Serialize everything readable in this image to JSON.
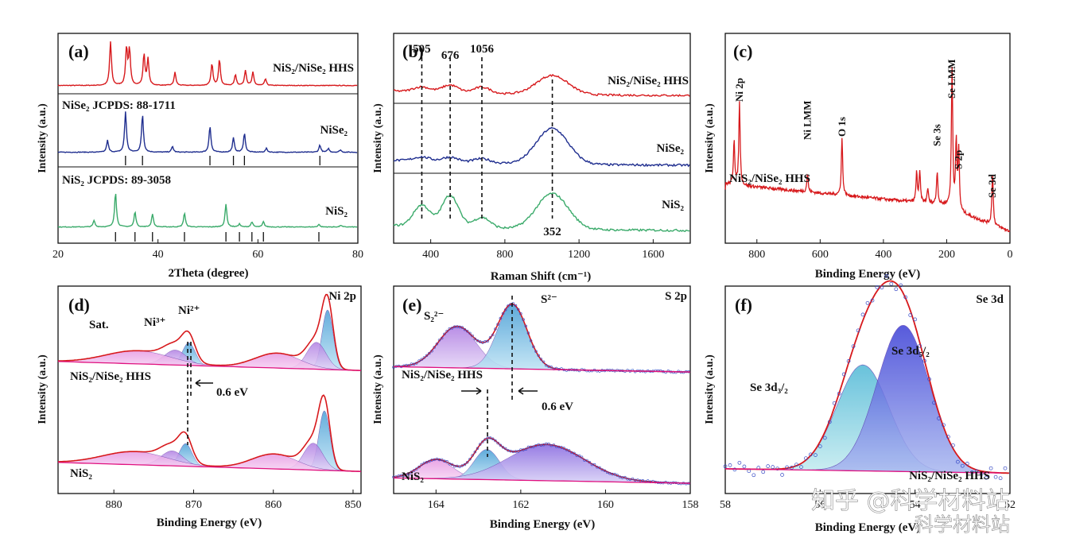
{
  "chart_data": [
    {
      "id": "a",
      "type": "line",
      "panel_label": "(a)",
      "xlabel": "2Theta (degree)",
      "ylabel": "Intensity (a.u.)",
      "xlim": [
        20,
        80
      ],
      "xticks": [
        "20",
        "40",
        "60",
        "80"
      ],
      "subpanels": [
        {
          "label": "NiS₂/NiSe₂ HHS",
          "color": "#d7191c",
          "peaks": [
            [
              30.5,
              1.0
            ],
            [
              33.7,
              0.85
            ],
            [
              34.3,
              0.8
            ],
            [
              37.2,
              0.7
            ],
            [
              38.0,
              0.6
            ],
            [
              43.4,
              0.3
            ],
            [
              50.8,
              0.5
            ],
            [
              52.3,
              0.6
            ],
            [
              55.5,
              0.25
            ],
            [
              57.5,
              0.35
            ],
            [
              59.0,
              0.3
            ],
            [
              61.5,
              0.15
            ]
          ]
        },
        {
          "label": "NiSe₂",
          "ref_label": "NiSe₂ JCPDS: 88-1711",
          "color": "#1f2e8f",
          "peaks": [
            [
              29.9,
              0.25
            ],
            [
              33.5,
              0.85
            ],
            [
              36.9,
              0.8
            ],
            [
              42.9,
              0.12
            ],
            [
              50.4,
              0.55
            ],
            [
              55.1,
              0.3
            ],
            [
              57.3,
              0.4
            ],
            [
              61.7,
              0.08
            ],
            [
              72.4,
              0.15
            ],
            [
              74.1,
              0.08
            ],
            [
              76.5,
              0.05
            ]
          ],
          "ref_lines": [
            33.5,
            36.9,
            50.4,
            55.1,
            57.3,
            72.4
          ]
        },
        {
          "label": "NiS₂",
          "ref_label": "NiS₂ JCPDS: 89-3058",
          "color": "#3aaa6a",
          "peaks": [
            [
              27.2,
              0.15
            ],
            [
              31.5,
              0.8
            ],
            [
              35.4,
              0.35
            ],
            [
              38.9,
              0.3
            ],
            [
              45.3,
              0.32
            ],
            [
              53.6,
              0.52
            ],
            [
              56.3,
              0.07
            ],
            [
              58.8,
              0.12
            ],
            [
              61.1,
              0.12
            ],
            [
              72.2,
              0.06
            ],
            [
              76.6,
              0.04
            ]
          ],
          "ref_lines": [
            31.5,
            35.4,
            38.9,
            45.3,
            53.6,
            56.3,
            58.8,
            61.1,
            72.2
          ]
        }
      ]
    },
    {
      "id": "b",
      "type": "line",
      "panel_label": "(b)",
      "xlabel": "Raman Shift (cm⁻¹)",
      "ylabel": "Intensity (a.u.)",
      "xlim": [
        200,
        1800
      ],
      "xticks": [
        "400",
        "800",
        "1200",
        "1600"
      ],
      "marked_peaks": [
        "505",
        "676",
        "1056",
        "352"
      ],
      "marked_positions": [
        352,
        505,
        676,
        1056
      ],
      "subpanels": [
        {
          "label": "NiS₂/NiSe₂ HHS",
          "color": "#d7191c",
          "bands": [
            [
              352,
              0.08
            ],
            [
              505,
              0.12
            ],
            [
              676,
              0.1
            ],
            [
              1056,
              0.3
            ]
          ]
        },
        {
          "label": "NiSe₂",
          "color": "#1f2e8f",
          "bands": [
            [
              352,
              0.06
            ],
            [
              505,
              0.07
            ],
            [
              676,
              0.06
            ],
            [
              1056,
              0.5
            ]
          ]
        },
        {
          "label": "NiS₂",
          "color": "#3aaa6a",
          "bands": [
            [
              352,
              0.3
            ],
            [
              505,
              0.45
            ],
            [
              676,
              0.15
            ],
            [
              1056,
              0.5
            ]
          ]
        }
      ]
    },
    {
      "id": "c",
      "type": "line",
      "panel_label": "(c)",
      "xlabel": "Binding Energy (eV)",
      "ylabel": "Intensity (a.u.)",
      "xlim": [
        900,
        0
      ],
      "xticks": [
        "800",
        "600",
        "400",
        "200",
        "0"
      ],
      "sample_label": "NiS₂/NiSe₂ HHS",
      "color": "#d7191c",
      "annotations": [
        {
          "label": "Ni 2p",
          "x": 855
        },
        {
          "label": "Ni LMM",
          "x": 640
        },
        {
          "label": "O 1s",
          "x": 531
        },
        {
          "label": "Se 3s",
          "x": 230
        },
        {
          "label": "Se LMM",
          "x": 183
        },
        {
          "label": "S 2p",
          "x": 162
        },
        {
          "label": "Se 3d",
          "x": 55
        }
      ]
    },
    {
      "id": "d",
      "type": "line",
      "panel_label": "(d)",
      "title": "Ni 2p",
      "xlabel": "Binding Energy (eV)",
      "ylabel": "Intensity (a.u.)",
      "xlim": [
        887,
        849
      ],
      "xticks": [
        "880",
        "870",
        "860",
        "850"
      ],
      "annotations": [
        "Sat.",
        "Ni³⁺",
        "Ni²⁺"
      ],
      "shift_label": "0.6 eV",
      "samples": [
        "NiS₂/NiSe₂ HHS",
        "NiS₂"
      ]
    },
    {
      "id": "e",
      "type": "line",
      "panel_label": "(e)",
      "title": "S 2p",
      "xlabel": "Binding Energy (eV)",
      "ylabel": "Intensity (a.u.)",
      "xlim": [
        165,
        158
      ],
      "xticks": [
        "164",
        "162",
        "160",
        "158"
      ],
      "annotations": [
        "S₂²⁻",
        "S²⁻"
      ],
      "shift_label": "0.6 eV",
      "samples": [
        "NiS₂/NiSe₂ HHS",
        "NiS₂"
      ]
    },
    {
      "id": "f",
      "type": "line",
      "panel_label": "(f)",
      "title": "Se 3d",
      "xlabel": "Binding Energy (eV)",
      "ylabel": "Intensity (a.u.)",
      "xlim": [
        58,
        52
      ],
      "xticks": [
        "58",
        "56",
        "54",
        "52"
      ],
      "components": [
        {
          "label": "Se 3d₃/₂",
          "center": 55.1,
          "height": 0.58
        },
        {
          "label": "Se 3d₅/₂",
          "center": 54.25,
          "height": 0.8
        }
      ],
      "sample_label": "NiS₂/NiSe₂ HHS"
    }
  ],
  "watermarks": [
    "知乎 @科学材料站",
    "科学材料站"
  ]
}
